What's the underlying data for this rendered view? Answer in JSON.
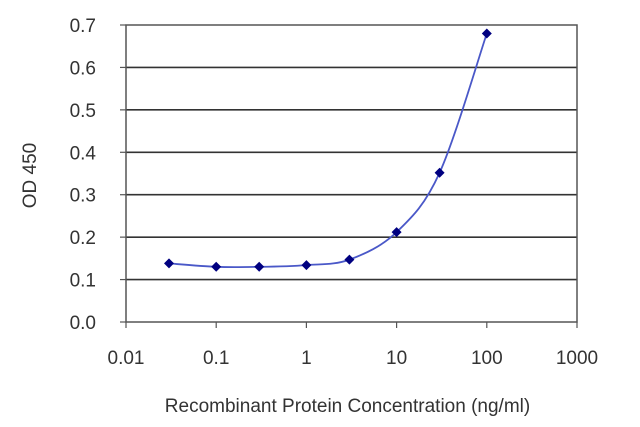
{
  "chart_data": {
    "type": "line",
    "title": "",
    "xlabel": "Recombinant Protein Concentration (ng/ml)",
    "ylabel": "OD 450",
    "x_scale": "log",
    "xlim": [
      0.01,
      1000
    ],
    "ylim": [
      0.0,
      0.7
    ],
    "x_ticks": [
      "0.01",
      "0.1",
      "1",
      "10",
      "100",
      "1000"
    ],
    "y_ticks": [
      "0.0",
      "0.1",
      "0.2",
      "0.3",
      "0.4",
      "0.5",
      "0.6",
      "0.7"
    ],
    "grid": "horizontal",
    "legend": "none",
    "series": [
      {
        "x": [
          0.03,
          0.1,
          0.3,
          1,
          3,
          10,
          30,
          100
        ],
        "y": [
          0.138,
          0.13,
          0.13,
          0.134,
          0.147,
          0.212,
          0.352,
          0.68
        ],
        "color": "#000080",
        "line_color": "#4a58c8",
        "marker": "diamond"
      }
    ]
  }
}
